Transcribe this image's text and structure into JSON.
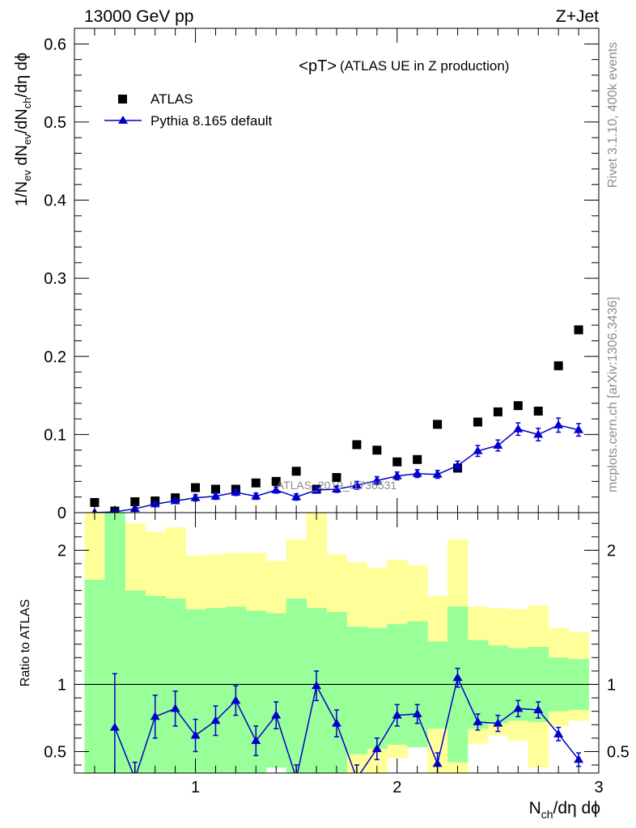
{
  "header": {
    "left": "13000 GeV pp",
    "right": "Z+Jet"
  },
  "side_labels": {
    "rivet": "Rivet 3.1.10,  400k events",
    "mcplots": "mcplots.cern.ch [arXiv:1306.3436]"
  },
  "watermark": "ATLAS_2019_I1736531",
  "chart_data": [
    {
      "type": "scatter",
      "panel": "main",
      "title_main": "<pT>",
      "title_sub": "(ATLAS UE in Z production)",
      "ylabel": "1/N_ev dN_ev/dN_ch/dη dϕ",
      "xlim": [
        0.4,
        3.0
      ],
      "ylim": [
        0,
        0.62
      ],
      "yticks": [
        {
          "v": 0,
          "label": "0"
        },
        {
          "v": 0.1,
          "label": "0.1"
        },
        {
          "v": 0.2,
          "label": "0.2"
        },
        {
          "v": 0.3,
          "label": "0.3"
        },
        {
          "v": 0.4,
          "label": "0.4"
        },
        {
          "v": 0.5,
          "label": "0.5"
        },
        {
          "v": 0.6,
          "label": "0.6"
        }
      ],
      "legend": [
        {
          "name": "ATLAS",
          "marker": "square",
          "color": "#000000"
        },
        {
          "name": "Pythia 8.165 default",
          "marker": "triangle",
          "color": "#0000cc"
        }
      ],
      "series": [
        {
          "name": "ATLAS",
          "x": [
            0.5,
            0.6,
            0.7,
            0.8,
            0.9,
            1.0,
            1.1,
            1.2,
            1.3,
            1.4,
            1.5,
            1.6,
            1.7,
            1.8,
            1.9,
            2.0,
            2.1,
            2.2,
            2.3,
            2.4,
            2.5,
            2.6,
            2.7,
            2.8,
            2.9
          ],
          "y": [
            0.013,
            0.002,
            0.014,
            0.015,
            0.019,
            0.032,
            0.03,
            0.03,
            0.038,
            0.04,
            0.053,
            0.03,
            0.045,
            0.087,
            0.08,
            0.065,
            0.068,
            0.113,
            0.057,
            0.116,
            0.129,
            0.137,
            0.13,
            0.188,
            0.234
          ]
        },
        {
          "name": "Pythia 8.165 default",
          "x": [
            0.5,
            0.6,
            0.7,
            0.8,
            0.9,
            1.0,
            1.1,
            1.2,
            1.3,
            1.4,
            1.5,
            1.6,
            1.7,
            1.8,
            1.9,
            2.0,
            2.1,
            2.2,
            2.3,
            2.4,
            2.5,
            2.6,
            2.7,
            2.8,
            2.9
          ],
          "y": [
            0.0,
            0.001,
            0.005,
            0.011,
            0.015,
            0.019,
            0.021,
            0.026,
            0.021,
            0.029,
            0.02,
            0.029,
            0.03,
            0.035,
            0.041,
            0.047,
            0.05,
            0.049,
            0.06,
            0.079,
            0.086,
            0.107,
            0.1,
            0.112,
            0.106
          ],
          "err": [
            0.0,
            0.001,
            0.002,
            0.003,
            0.003,
            0.004,
            0.004,
            0.004,
            0.004,
            0.004,
            0.004,
            0.004,
            0.004,
            0.005,
            0.005,
            0.005,
            0.005,
            0.005,
            0.006,
            0.007,
            0.007,
            0.008,
            0.008,
            0.009,
            0.008
          ]
        }
      ]
    },
    {
      "type": "scatter",
      "panel": "ratio",
      "ylabel": "Ratio to ATLAS",
      "xlabel": "N_ch/dη dϕ",
      "xlim": [
        0.4,
        3.0
      ],
      "ylim": [
        0.34,
        2.28
      ],
      "reference_line": 1.0,
      "xticks": [
        {
          "v": 1,
          "label": "1"
        },
        {
          "v": 2,
          "label": "2"
        },
        {
          "v": 3,
          "label": "3"
        }
      ],
      "yticks": [
        {
          "v": 0.5,
          "label": "0.5"
        },
        {
          "v": 1,
          "label": "1"
        },
        {
          "v": 2,
          "label": "2"
        }
      ],
      "band_colors": {
        "inner": "#99ff99",
        "outer": "#ffff99"
      },
      "bands": {
        "x_edges": [
          0.45,
          0.55,
          0.65,
          0.75,
          0.85,
          0.95,
          1.05,
          1.15,
          1.25,
          1.35,
          1.45,
          1.55,
          1.65,
          1.75,
          1.85,
          1.95,
          2.05,
          2.15,
          2.25,
          2.35,
          2.45,
          2.55,
          2.65,
          2.75,
          2.85,
          2.95
        ],
        "inner_up": [
          1.78,
          2.34,
          1.7,
          1.66,
          1.64,
          1.56,
          1.57,
          1.58,
          1.55,
          1.53,
          1.64,
          1.57,
          1.54,
          1.43,
          1.42,
          1.45,
          1.47,
          1.32,
          1.58,
          1.33,
          1.29,
          1.27,
          1.28,
          1.2,
          1.19
        ],
        "inner_down": [
          0.34,
          0.34,
          0.34,
          0.34,
          0.34,
          0.34,
          0.34,
          0.34,
          0.34,
          0.38,
          0.34,
          0.34,
          0.34,
          0.48,
          0.52,
          0.55,
          0.53,
          0.67,
          0.42,
          0.67,
          0.71,
          0.73,
          0.72,
          0.8,
          0.81
        ],
        "outer_up": [
          2.34,
          2.34,
          2.2,
          2.14,
          2.17,
          1.96,
          1.97,
          1.98,
          1.98,
          1.92,
          2.08,
          2.34,
          1.97,
          1.91,
          1.87,
          1.93,
          1.89,
          1.66,
          2.08,
          1.58,
          1.57,
          1.56,
          1.59,
          1.42,
          1.39
        ],
        "outer_down": [
          0.34,
          0.34,
          0.34,
          0.34,
          0.34,
          0.56,
          0.55,
          0.55,
          0.51,
          0.4,
          0.67,
          0.34,
          0.49,
          0.34,
          0.34,
          0.45,
          0.57,
          0.34,
          0.34,
          0.56,
          0.62,
          0.58,
          0.38,
          0.69,
          0.73
        ]
      },
      "series": [
        {
          "name": "Pythia 8.165 default",
          "x": [
            0.6,
            0.7,
            0.8,
            0.9,
            1.0,
            1.1,
            1.2,
            1.3,
            1.4,
            1.5,
            1.6,
            1.7,
            1.8,
            1.9,
            2.0,
            2.1,
            2.2,
            2.3,
            2.4,
            2.5,
            2.6,
            2.7,
            2.8,
            2.9
          ],
          "y": [
            0.68,
            0.3,
            0.76,
            0.82,
            0.62,
            0.73,
            0.88,
            0.58,
            0.77,
            0.3,
            0.99,
            0.71,
            0.3,
            0.52,
            0.77,
            0.78,
            0.41,
            1.05,
            0.72,
            0.71,
            0.82,
            0.81,
            0.63,
            0.44
          ],
          "err": [
            0.4,
            0.12,
            0.16,
            0.13,
            0.12,
            0.11,
            0.11,
            0.11,
            0.1,
            0.1,
            0.11,
            0.1,
            0.1,
            0.08,
            0.08,
            0.07,
            0.08,
            0.07,
            0.06,
            0.06,
            0.06,
            0.06,
            0.05,
            0.05
          ]
        }
      ]
    }
  ]
}
